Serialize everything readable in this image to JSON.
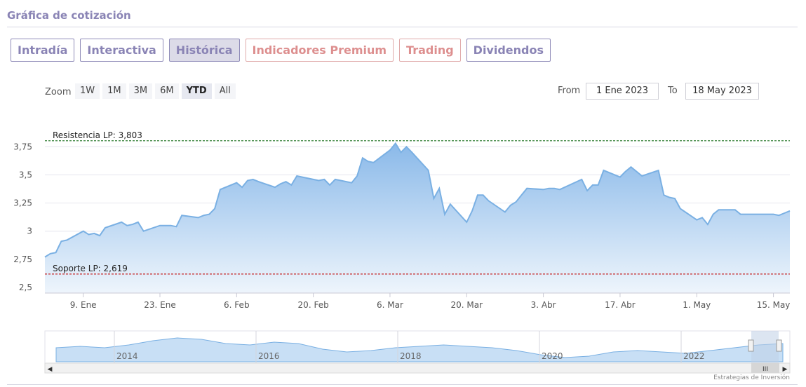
{
  "header": {
    "title": "Gráfica de cotización"
  },
  "tabs": [
    {
      "label": "Intradía",
      "active": false,
      "premium": false
    },
    {
      "label": "Interactiva",
      "active": false,
      "premium": false
    },
    {
      "label": "Histórica",
      "active": true,
      "premium": false
    },
    {
      "label": "Indicadores Premium",
      "active": false,
      "premium": true
    },
    {
      "label": "Trading",
      "active": false,
      "premium": true
    },
    {
      "label": "Dividendos",
      "active": false,
      "premium": false
    }
  ],
  "zoom": {
    "label": "Zoom",
    "buttons": [
      "1W",
      "1M",
      "3M",
      "6M",
      "YTD",
      "All"
    ],
    "active": "YTD"
  },
  "range": {
    "from_label": "From",
    "from_value": "1 Ene 2023",
    "to_label": "To",
    "to_value": "18 May 2023"
  },
  "colors": {
    "accent": "#8a84b5",
    "premium": "#dd8f8f",
    "line": "#7ab0e3",
    "fill_top": "#8ab9e9",
    "fill_bottom": "#eef5fc",
    "resistance": "#2e7d32",
    "support": "#c62828"
  },
  "chart_data": {
    "type": "area",
    "x": [
      "2023-01-02",
      "2023-01-03",
      "2023-01-04",
      "2023-01-05",
      "2023-01-06",
      "2023-01-09",
      "2023-01-10",
      "2023-01-11",
      "2023-01-12",
      "2023-01-13",
      "2023-01-16",
      "2023-01-17",
      "2023-01-18",
      "2023-01-19",
      "2023-01-20",
      "2023-01-23",
      "2023-01-24",
      "2023-01-25",
      "2023-01-26",
      "2023-01-27",
      "2023-01-30",
      "2023-01-31",
      "2023-02-01",
      "2023-02-02",
      "2023-02-03",
      "2023-02-06",
      "2023-02-07",
      "2023-02-08",
      "2023-02-09",
      "2023-02-10",
      "2023-02-13",
      "2023-02-14",
      "2023-02-15",
      "2023-02-16",
      "2023-02-17",
      "2023-02-20",
      "2023-02-21",
      "2023-02-22",
      "2023-02-23",
      "2023-02-24",
      "2023-02-27",
      "2023-02-28",
      "2023-03-01",
      "2023-03-02",
      "2023-03-03",
      "2023-03-06",
      "2023-03-07",
      "2023-03-08",
      "2023-03-09",
      "2023-03-10",
      "2023-03-13",
      "2023-03-14",
      "2023-03-15",
      "2023-03-16",
      "2023-03-17",
      "2023-03-20",
      "2023-03-21",
      "2023-03-22",
      "2023-03-23",
      "2023-03-24",
      "2023-03-27",
      "2023-03-28",
      "2023-03-29",
      "2023-03-30",
      "2023-03-31",
      "2023-04-03",
      "2023-04-04",
      "2023-04-05",
      "2023-04-06",
      "2023-04-10",
      "2023-04-11",
      "2023-04-12",
      "2023-04-13",
      "2023-04-14",
      "2023-04-17",
      "2023-04-18",
      "2023-04-19",
      "2023-04-20",
      "2023-04-21",
      "2023-04-24",
      "2023-04-25",
      "2023-04-26",
      "2023-04-27",
      "2023-04-28",
      "2023-05-01",
      "2023-05-02",
      "2023-05-03",
      "2023-05-04",
      "2023-05-05",
      "2023-05-08",
      "2023-05-09",
      "2023-05-10",
      "2023-05-11",
      "2023-05-12",
      "2023-05-15",
      "2023-05-16",
      "2023-05-17",
      "2023-05-18"
    ],
    "series": [
      {
        "values": [
          2.77,
          2.8,
          2.81,
          2.91,
          2.92,
          3.0,
          2.97,
          2.98,
          2.96,
          3.03,
          3.08,
          3.05,
          3.06,
          3.08,
          3.0,
          3.05,
          3.05,
          3.05,
          3.04,
          3.14,
          3.12,
          3.14,
          3.15,
          3.2,
          3.37,
          3.43,
          3.39,
          3.45,
          3.46,
          3.44,
          3.39,
          3.42,
          3.44,
          3.41,
          3.49,
          3.46,
          3.45,
          3.46,
          3.41,
          3.46,
          3.43,
          3.49,
          3.65,
          3.62,
          3.61,
          3.72,
          3.78,
          3.7,
          3.75,
          3.7,
          3.54,
          3.29,
          3.38,
          3.15,
          3.24,
          3.08,
          3.18,
          3.32,
          3.32,
          3.27,
          3.17,
          3.23,
          3.26,
          3.32,
          3.38,
          3.37,
          3.38,
          3.38,
          3.37,
          3.46,
          3.36,
          3.41,
          3.41,
          3.54,
          3.48,
          3.53,
          3.57,
          3.53,
          3.49,
          3.54,
          3.32,
          3.3,
          3.29,
          3.2,
          3.1,
          3.12,
          3.06,
          3.15,
          3.19,
          3.19,
          3.15,
          3.15,
          3.15,
          3.15,
          3.15,
          3.14,
          3.16,
          3.18
        ]
      }
    ],
    "ylim": [
      2.45,
      3.92
    ],
    "yticks": [
      {
        "v": 2.5,
        "label": "2,5"
      },
      {
        "v": 2.75,
        "label": "2,75"
      },
      {
        "v": 3,
        "label": "3"
      },
      {
        "v": 3.25,
        "label": "3,25"
      },
      {
        "v": 3.5,
        "label": "3,5"
      },
      {
        "v": 3.75,
        "label": "3,75"
      }
    ],
    "xticks": [
      {
        "date": "2023-01-09",
        "label": "9. Ene"
      },
      {
        "date": "2023-01-23",
        "label": "23. Ene"
      },
      {
        "date": "2023-02-06",
        "label": "6. Feb"
      },
      {
        "date": "2023-02-20",
        "label": "20. Feb"
      },
      {
        "date": "2023-03-06",
        "label": "6. Mar"
      },
      {
        "date": "2023-03-20",
        "label": "20. Mar"
      },
      {
        "date": "2023-04-03",
        "label": "3. Abr"
      },
      {
        "date": "2023-04-17",
        "label": "17. Abr"
      },
      {
        "date": "2023-05-01",
        "label": "1. May"
      },
      {
        "date": "2023-05-15",
        "label": "15. May"
      }
    ],
    "xrange": [
      "2023-01-02",
      "2023-05-18"
    ],
    "annotations": [
      {
        "label": "Resistencia LP: 3,803",
        "value": 3.803,
        "kind": "resistance"
      },
      {
        "label": "Soporte LP: 2,619",
        "value": 2.619,
        "kind": "support"
      }
    ],
    "grid": true,
    "navigator": {
      "years": [
        "2014",
        "2016",
        "2018",
        "2020",
        "2022"
      ],
      "values": [
        3.2,
        3.3,
        3.2,
        3.4,
        3.7,
        3.9,
        3.8,
        3.5,
        3.4,
        3.6,
        3.5,
        3.1,
        2.9,
        3.0,
        3.2,
        3.3,
        3.4,
        3.3,
        3.2,
        3.0,
        2.7,
        2.5,
        2.6,
        2.9,
        3.0,
        2.9,
        2.8,
        3.0,
        3.2,
        3.4,
        3.5
      ]
    }
  },
  "credit": "Estrategias de Inversión"
}
